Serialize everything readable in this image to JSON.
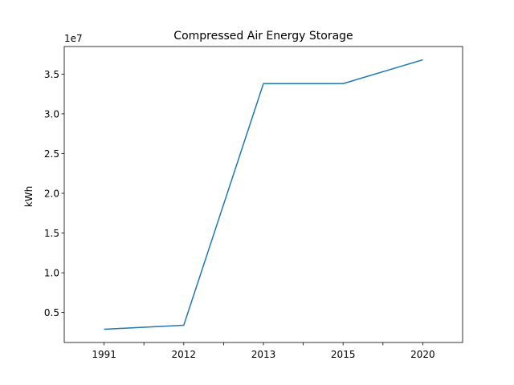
{
  "chart_data": {
    "type": "line",
    "title": "Compressed Air Energy Storage",
    "xlabel": "",
    "ylabel": "kWh",
    "y_offset_label": "1e7",
    "y_scale": 10000000,
    "categories": [
      "1991",
      "2012",
      "2013",
      "2015",
      "2020"
    ],
    "x_tick_labels": [
      "1991",
      "",
      "2012",
      "",
      "2013",
      "",
      "2015",
      "",
      "2020"
    ],
    "series": [
      {
        "values": [
          2900000,
          3400000,
          33800000,
          33800000,
          36800000
        ],
        "color": "#1f77b4"
      }
    ],
    "y_ticks": [
      0.5,
      1.0,
      1.5,
      2.0,
      2.5,
      3.0,
      3.5
    ],
    "y_tick_labels": [
      "0.5",
      "1.0",
      "1.5",
      "2.0",
      "2.5",
      "3.0",
      "3.5"
    ],
    "ylim": [
      1230000,
      38470000
    ],
    "grid": false,
    "legend": false
  }
}
